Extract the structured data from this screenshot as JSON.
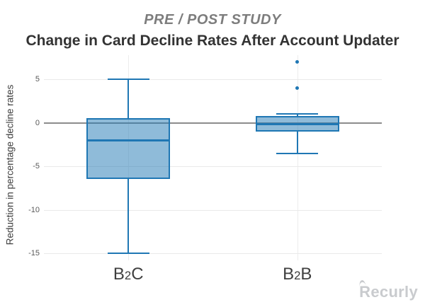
{
  "header": {
    "eyebrow": "PRE / POST STUDY",
    "title": "Change in Card Decline Rates After Account Updater"
  },
  "chart_data": {
    "type": "box",
    "title": "Change in Card Decline Rates After Account Updater",
    "subtitle": "PRE / POST STUDY",
    "categories": [
      "B2C",
      "B2B"
    ],
    "series": [
      {
        "name": "B2C",
        "min": -15,
        "q1": -6.5,
        "median": -2,
        "q3": 0.5,
        "max": 5,
        "outliers": []
      },
      {
        "name": "B2B",
        "min": -3.5,
        "q1": -1,
        "median": -0.2,
        "q3": 0.8,
        "max": 1,
        "outliers": [
          4,
          7
        ]
      }
    ],
    "xlabel": "",
    "ylabel": "Reduction in percentage decline rates",
    "yticks": [
      5,
      0,
      -5,
      -10,
      -15
    ],
    "ylim": [
      -17.5,
      8
    ],
    "grid": true,
    "zeroline": true,
    "legend_position": "none"
  },
  "colors": {
    "box_fill": "rgba(31,119,180,0.5)",
    "box_line": "#1f77b4",
    "zero_line": "#8c8c8c",
    "gridline": "#e9e9e9",
    "eyebrow_text": "#7d7d7d",
    "title_text": "#333333",
    "tick_text": "#5a5a5a",
    "category_text": "#3f3f3f"
  },
  "branding": {
    "logo_text": "Recurly"
  }
}
